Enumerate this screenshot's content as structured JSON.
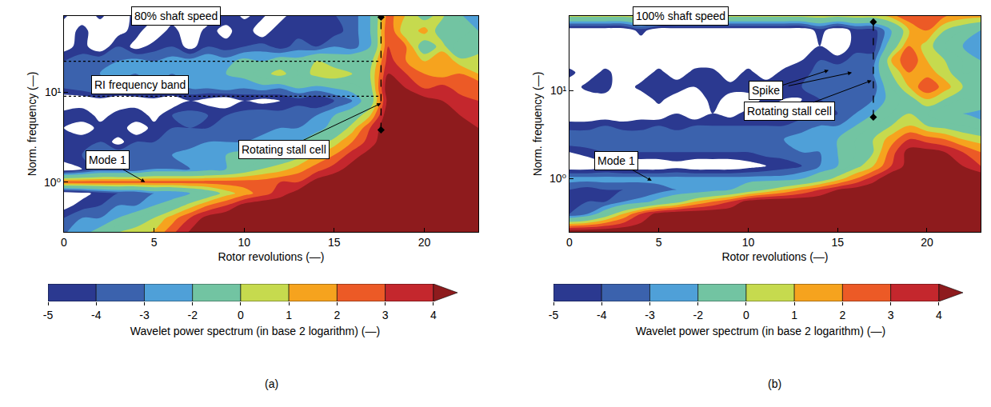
{
  "chart_data": [
    {
      "type": "contour",
      "title": "80% shaft speed",
      "x_label": "Rotor revolutions (—)",
      "y_label": "Norm. frequency (—)",
      "caption": "(a)",
      "log": "y",
      "grid": false,
      "xlim": [
        0,
        23
      ],
      "ylim": [
        0.28,
        70
      ],
      "xticks": [
        0,
        5,
        10,
        15,
        20
      ],
      "yticks": [
        {
          "value": 1,
          "label": "10⁰"
        },
        {
          "value": 10,
          "label": "10¹"
        }
      ],
      "x": [
        0,
        1,
        2,
        3,
        4,
        5,
        6,
        7,
        8,
        9,
        10,
        11,
        12,
        13,
        14,
        15,
        16,
        17,
        18,
        19,
        20,
        21,
        22,
        23
      ],
      "y": [
        0.25,
        0.4,
        0.55,
        0.75,
        1.0,
        1.4,
        2,
        2.8,
        4,
        5.5,
        8,
        11,
        16,
        22,
        32,
        48,
        75
      ],
      "z": [
        [
          -3,
          -2,
          -1,
          0.5,
          1,
          1.5,
          3,
          4.5,
          5,
          5,
          5,
          5,
          5,
          5,
          5,
          5,
          5,
          5,
          5,
          5,
          5,
          5,
          5,
          5
        ],
        [
          -4,
          -3,
          -3,
          -2,
          -1,
          0,
          1.5,
          3,
          4.5,
          5,
          5,
          5,
          5,
          5,
          5,
          5,
          5,
          5,
          5,
          5,
          5,
          5,
          5,
          5
        ],
        [
          -5.5,
          -4.5,
          -4,
          -3,
          -3,
          -2,
          -1,
          0.5,
          2,
          3,
          4.5,
          5,
          5,
          5,
          5,
          5,
          5,
          5,
          5,
          5,
          5,
          5,
          5,
          5
        ],
        [
          -6,
          -5.5,
          -4.5,
          -4,
          -4,
          -3,
          -3,
          -2,
          -1,
          0.5,
          1.5,
          2.5,
          3.5,
          4.5,
          5,
          5,
          5,
          5,
          5,
          5,
          5,
          5,
          5,
          5
        ],
        [
          2.5,
          2.5,
          2.5,
          2.5,
          2.5,
          2.5,
          2.5,
          2.5,
          2.5,
          2.5,
          2.5,
          2.5,
          3,
          3,
          4.5,
          5,
          5,
          5,
          5,
          5,
          5,
          5,
          5,
          5
        ],
        [
          -6,
          -5,
          -4,
          -4,
          -4,
          -3,
          -3,
          -3,
          -2.5,
          -2,
          -1,
          0,
          0.5,
          1.5,
          2.5,
          3.5,
          4.5,
          5,
          5,
          5,
          5,
          5,
          5,
          5
        ],
        [
          -4,
          -4,
          -3.5,
          -3,
          -3,
          -3,
          -3,
          -2.5,
          -2.5,
          -2,
          -1.5,
          -1.5,
          -1,
          -0.5,
          1,
          2,
          3.5,
          4.5,
          5,
          5,
          5,
          5,
          5,
          5
        ],
        [
          -4.5,
          -4,
          -4,
          -5.5,
          -4,
          -4,
          -3.5,
          -3.5,
          -3,
          -3,
          -3,
          -2.5,
          -2.5,
          -2,
          -1,
          0.5,
          2,
          3.5,
          5,
          5,
          5,
          5,
          5,
          5
        ],
        [
          -5,
          -6,
          -4.5,
          -4,
          -6,
          -4.5,
          -4,
          -4,
          -4,
          -3.5,
          -3,
          -3.5,
          -3,
          -3,
          -2.5,
          -1.5,
          0.5,
          3,
          5,
          5,
          5,
          5,
          4.5,
          4
        ],
        [
          -4.5,
          -4,
          -5.5,
          -4.5,
          -4,
          -5.5,
          -4,
          -3.5,
          -4,
          -4,
          -3.5,
          -3,
          -3.5,
          -3,
          -3,
          -2,
          -1,
          1,
          5,
          5,
          5,
          5,
          4,
          3.5
        ],
        [
          -6,
          -6,
          -5.5,
          -6,
          -6,
          -5.5,
          -6,
          -5,
          -5.5,
          -6,
          -5,
          -5.5,
          -5,
          -4.5,
          -5,
          -4,
          -3,
          -1,
          4.5,
          5,
          4.5,
          4,
          3.5,
          3
        ],
        [
          -4,
          -3.5,
          -3,
          -3.5,
          -3,
          -3,
          -3.5,
          -3,
          -3,
          -2.5,
          -3,
          -2.5,
          -3,
          -2,
          -2.5,
          -2,
          -1.5,
          -0.5,
          5,
          4,
          3,
          3.5,
          2.5,
          3
        ],
        [
          -3.5,
          -3,
          -3,
          -2.5,
          -3,
          -2.5,
          -3,
          -2,
          -2.5,
          -2,
          -1.5,
          -0.5,
          0.5,
          -1,
          0.5,
          1,
          0,
          0,
          4,
          3,
          2,
          1.5,
          2,
          1
        ],
        [
          -4,
          -3.5,
          -3,
          -3,
          -2.5,
          -3,
          -2.5,
          -2.5,
          -2,
          -2.5,
          -1.5,
          -2,
          -1,
          -1.5,
          0,
          -1,
          -0.5,
          -0.5,
          3.5,
          2,
          1,
          2,
          0.5,
          1
        ],
        [
          -5.5,
          -4.5,
          -6,
          -4,
          -5.5,
          -4.5,
          -4,
          -5.5,
          -4,
          -4.5,
          -4,
          -3.5,
          -4.5,
          -3.5,
          -4,
          -3,
          -3.5,
          -2,
          3,
          2,
          -1,
          0.5,
          -2,
          -1
        ],
        [
          -6,
          -4.5,
          -6,
          -5.5,
          -4.5,
          -6,
          -4.5,
          -6,
          -4.5,
          -5.5,
          -4,
          -6,
          -4,
          -4.5,
          -4,
          -4.5,
          -3.5,
          -2,
          3,
          0,
          1.5,
          -1,
          0,
          -2
        ],
        [
          -4.5,
          -6,
          -4.5,
          -6,
          -4.5,
          -4.5,
          -6,
          -4.5,
          -6,
          -4,
          -5.5,
          -4.5,
          -6,
          -4,
          -5,
          -4,
          -3.5,
          -2,
          2.5,
          1,
          -1,
          0.5,
          -2,
          -3
        ]
      ],
      "colorbar": {
        "title": "Wavelet power spectrum (in base 2 logarithm) (—)",
        "levels": [
          -5,
          -4,
          -3,
          -2,
          0,
          1,
          2,
          3,
          4
        ],
        "colors": [
          "#2b3990",
          "#3b62ad",
          "#4fa0d8",
          "#72c4a2",
          "#c6da4e",
          "#f6a31e",
          "#ec5a26",
          "#c4272d",
          "#8e1b1d"
        ]
      },
      "lines": [
        {
          "x": [
            0,
            17.5
          ],
          "y": [
            9,
            9
          ],
          "line_style": "dotted"
        },
        {
          "x": [
            0,
            17.5
          ],
          "y": [
            22,
            22
          ],
          "line_style": "dotted"
        },
        {
          "x": [
            17.6,
            17.6
          ],
          "y": [
            3.8,
            68
          ],
          "line_style": "dashed",
          "marker": "diamond"
        }
      ],
      "annotations": [
        {
          "text": "RI frequency band",
          "x": 4.2,
          "y": 12
        },
        {
          "text": "Mode 1",
          "x": 2.4,
          "y": 1.75,
          "arrows": [
            {
              "x": 4.5,
              "y": 1.0
            }
          ]
        },
        {
          "text": "Rotating stall cell",
          "x": 12.2,
          "y": 2.3,
          "arrows": [
            {
              "x": 17.6,
              "y": 7.5
            }
          ]
        }
      ]
    },
    {
      "type": "contour",
      "title": "100% shaft speed",
      "x_label": "Rotor revolutions (—)",
      "y_label": "Norm. frequency (—)",
      "caption": "(b)",
      "log": "y",
      "grid": false,
      "xlim": [
        0,
        23
      ],
      "ylim": [
        0.25,
        70
      ],
      "xticks": [
        0,
        5,
        10,
        15,
        20
      ],
      "yticks": [
        {
          "value": 1,
          "label": "10⁰"
        },
        {
          "value": 10,
          "label": "10¹"
        }
      ],
      "x": [
        0,
        1,
        2,
        3,
        4,
        5,
        6,
        7,
        8,
        9,
        10,
        11,
        12,
        13,
        14,
        15,
        16,
        17,
        18,
        19,
        20,
        21,
        22,
        23
      ],
      "y": [
        0.25,
        0.4,
        0.55,
        0.75,
        1.0,
        1.4,
        2,
        2.8,
        4,
        5.5,
        8,
        11,
        16,
        22,
        32,
        48,
        75
      ],
      "z": [
        [
          5,
          5,
          5,
          5,
          5,
          5,
          5,
          5,
          5,
          5,
          5,
          5,
          5,
          5,
          5,
          5,
          5,
          5,
          5,
          5,
          5,
          5,
          5,
          5
        ],
        [
          -4,
          -3,
          -1,
          1,
          3,
          4.5,
          5,
          5,
          5,
          5,
          5,
          5,
          5,
          5,
          5,
          5,
          5,
          5,
          5,
          5,
          5,
          5,
          5,
          5
        ],
        [
          -4.5,
          -4,
          -4,
          -3,
          -2.5,
          -1.5,
          -0.5,
          1,
          2,
          3,
          4.5,
          5,
          5,
          5,
          5,
          5,
          5,
          5,
          5,
          5,
          5,
          5,
          5,
          5
        ],
        [
          -4,
          -4.5,
          -4,
          -4,
          -4,
          -3.5,
          -3,
          -3,
          -2.5,
          -2,
          -1,
          0,
          1,
          2,
          3,
          4,
          4.5,
          5,
          5,
          5,
          5,
          5,
          5,
          5
        ],
        [
          -2.5,
          -2.5,
          -2.5,
          -2.5,
          -2.5,
          -2.5,
          -2.5,
          -2.5,
          -2.5,
          -2.5,
          -2.5,
          -2.5,
          -2.5,
          -2,
          -1,
          0.5,
          2,
          3.5,
          5,
          5,
          5,
          5,
          5,
          5
        ],
        [
          -6,
          -6,
          -5.5,
          -6,
          -6,
          -6,
          -5.5,
          -6,
          -6,
          -6,
          -5.5,
          -5,
          -4.5,
          -4,
          -3,
          -2,
          -0.5,
          1,
          3,
          4.5,
          5,
          5,
          4,
          3
        ],
        [
          -5,
          -4.5,
          -4,
          -4,
          -4,
          -4,
          -4,
          -4,
          -4,
          -4,
          -4,
          -3.5,
          -3.5,
          -3,
          -3,
          -2,
          -1,
          0,
          2.5,
          4.5,
          4.5,
          4,
          3,
          2
        ],
        [
          -3,
          -3,
          -3,
          -3,
          -3,
          -3,
          -3,
          -3,
          -3,
          -3,
          -3,
          -3,
          -3,
          -2.5,
          -2.5,
          -2,
          -1,
          0,
          1.5,
          3,
          2.5,
          2,
          1,
          0.5
        ],
        [
          -4.5,
          -4.5,
          -4,
          -4.5,
          -4.5,
          -4,
          -4.5,
          -4,
          -4,
          -4,
          -4,
          -4,
          -4,
          -3.5,
          -3,
          -3,
          -2,
          -1,
          0,
          1,
          0,
          -0.5,
          -1,
          -1.5
        ],
        [
          -6,
          -6,
          -6,
          -6,
          -5.5,
          -6,
          -5,
          -6,
          -5,
          -5.5,
          -4.5,
          -5,
          -5,
          -4.5,
          -4.5,
          -4,
          -3,
          -2,
          -1,
          0,
          -1,
          -2,
          -2,
          -2.5
        ],
        [
          -6,
          -6,
          -5.5,
          -6,
          -6,
          -4.5,
          -6,
          -6,
          -4.5,
          -5.5,
          -6,
          -4.5,
          -5,
          -5,
          -4,
          -3,
          -3.5,
          -3,
          -1.5,
          -0.5,
          1,
          0,
          -1,
          -0.5
        ],
        [
          -6,
          -4.5,
          -4.5,
          -6,
          -4.5,
          -4.5,
          -4,
          -5,
          -4.5,
          -4.5,
          -4,
          -4,
          -4.5,
          -4,
          -3.5,
          -3,
          -3,
          -3.5,
          -1,
          1,
          3,
          1.5,
          0,
          -1
        ],
        [
          -4.5,
          -6,
          -4.5,
          -6,
          -6,
          -4.5,
          -6,
          -4.5,
          -4.5,
          -6,
          -4.5,
          -6,
          -4.5,
          -4.5,
          -3.5,
          -3,
          -3,
          -3,
          0,
          2,
          1.5,
          0.5,
          -1,
          -0.5
        ],
        [
          -6,
          -6,
          -6,
          -6,
          -6,
          -6,
          -6,
          -6,
          -6,
          -6,
          -6,
          -6,
          -6,
          -5,
          -4,
          -4.5,
          -3.5,
          -3.5,
          1,
          3,
          1,
          0,
          -1,
          -2
        ],
        [
          -6,
          -6,
          -6,
          -6,
          -6,
          -6,
          -6,
          -6,
          -6,
          -6,
          -6,
          -6,
          -6,
          -6,
          -5,
          -6,
          -4.5,
          -4.5,
          -1,
          2,
          0.5,
          -1,
          -2,
          -3
        ],
        [
          -6,
          -6,
          -6,
          -6,
          -4.5,
          -6,
          -6,
          -6,
          -6,
          -6,
          -6,
          -6,
          -6,
          -6,
          -4.5,
          -6,
          -4.5,
          -4.5,
          -2,
          1,
          2,
          0,
          -1,
          -2
        ],
        [
          1.5,
          1.5,
          1.5,
          1.5,
          1.5,
          1.5,
          1.5,
          1.5,
          1.5,
          1.5,
          1.5,
          1.5,
          1.5,
          1.5,
          1.5,
          1.5,
          1.5,
          1.5,
          2,
          3,
          3,
          2.5,
          2,
          2
        ]
      ],
      "colorbar": {
        "title": "Wavelet power spectrum (in base 2 logarithm) (—)",
        "levels": [
          -5,
          -4,
          -3,
          -2,
          0,
          1,
          2,
          3,
          4
        ],
        "colors": [
          "#2b3990",
          "#3b62ad",
          "#4fa0d8",
          "#72c4a2",
          "#c6da4e",
          "#f6a31e",
          "#ec5a26",
          "#c4272d",
          "#8e1b1d"
        ]
      },
      "lines": [
        {
          "x": [
            17,
            17
          ],
          "y": [
            5,
            60
          ],
          "line_style": "dashed",
          "marker": "diamond"
        }
      ],
      "annotations": [
        {
          "text": "Spike",
          "x": 11,
          "y": 10,
          "arrows": [
            {
              "x": 14.5,
              "y": 17
            },
            {
              "x": 15.8,
              "y": 16
            }
          ]
        },
        {
          "text": "Rotating stall cell",
          "x": 12.3,
          "y": 5.8,
          "arrows": [
            {
              "x": 16.9,
              "y": 13
            }
          ]
        },
        {
          "text": "Mode 1",
          "x": 2.6,
          "y": 1.6,
          "arrows": [
            {
              "x": 4.6,
              "y": 0.95
            }
          ]
        }
      ]
    }
  ]
}
